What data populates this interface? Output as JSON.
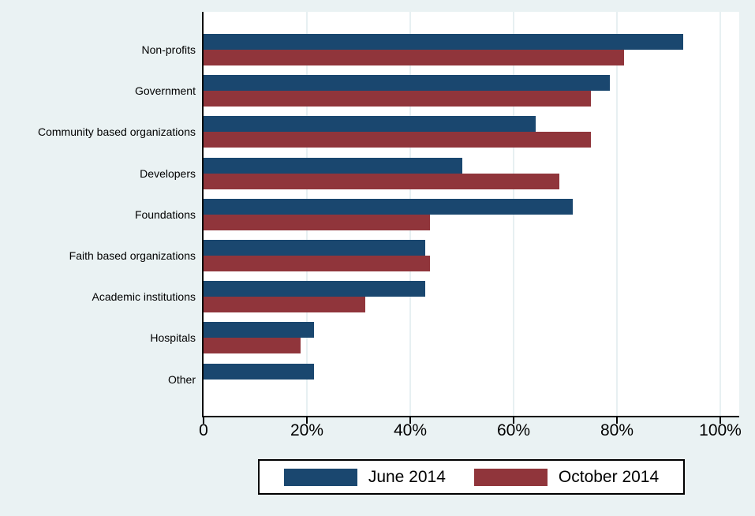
{
  "figure": {
    "background_color": "#eaf2f3",
    "plot_background_color": "#ffffff",
    "gridline_color": "#e7f0f2",
    "axis_color": "#000000"
  },
  "chart_data": {
    "type": "bar",
    "orientation": "horizontal",
    "title": "",
    "xlabel": "",
    "ylabel": "",
    "categories": [
      "Non-profits",
      "Government",
      "Community based organizations",
      "Developers",
      "Foundations",
      "Faith based organizations",
      "Academic institutions",
      "Hospitals",
      "Other"
    ],
    "series": [
      {
        "name": "June 2014",
        "color": "#1a476f",
        "values": [
          92.9,
          78.6,
          64.3,
          50.0,
          71.4,
          42.9,
          42.9,
          21.4,
          21.4
        ]
      },
      {
        "name": "October 2014",
        "color": "#90353b",
        "values": [
          81.3,
          75.0,
          75.0,
          68.8,
          43.8,
          43.8,
          31.3,
          18.8,
          0
        ]
      }
    ],
    "x_ticks": [
      {
        "value": 0,
        "label": "0"
      },
      {
        "value": 20,
        "label": "20%"
      },
      {
        "value": 40,
        "label": "40%"
      },
      {
        "value": 60,
        "label": "60%"
      },
      {
        "value": 80,
        "label": "80%"
      },
      {
        "value": 100,
        "label": "100%"
      }
    ],
    "xlim": [
      0,
      103.6
    ],
    "grid": "vertical",
    "legend_position": "bottom-center"
  }
}
